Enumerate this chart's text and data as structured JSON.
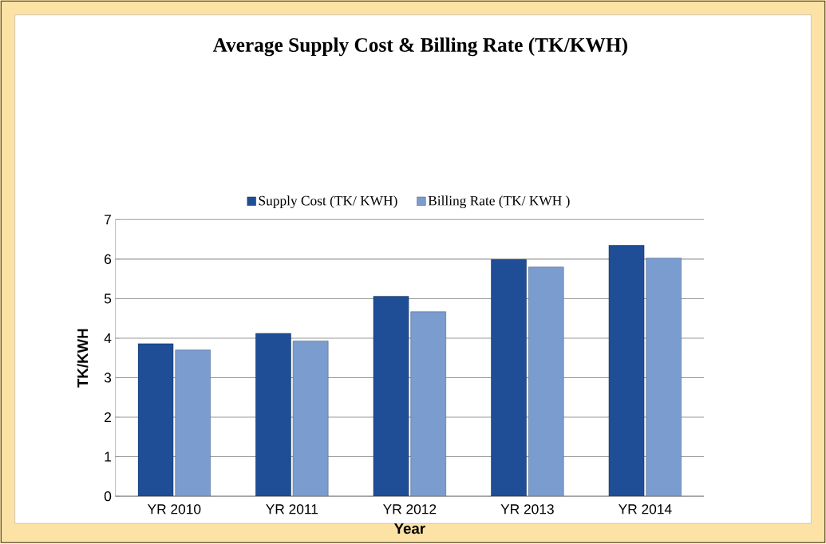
{
  "chart_data": {
    "type": "bar",
    "title": "Average Supply Cost & Billing Rate (TK/KWH)",
    "xlabel": "Year",
    "ylabel": "TK/KWH",
    "categories": [
      "YR 2010",
      "YR 2011",
      "YR 2012",
      "YR 2013",
      "YR 2014"
    ],
    "series": [
      {
        "name": "Supply Cost (TK/ KWH)",
        "color": "#1f4e96",
        "values": [
          3.86,
          4.12,
          5.06,
          5.99,
          6.35
        ]
      },
      {
        "name": "Billing Rate (TK/ KWH )",
        "color": "#7a9ccf",
        "values": [
          3.7,
          3.93,
          4.67,
          5.8,
          6.03
        ]
      }
    ],
    "ylim": [
      0,
      7
    ],
    "yticks": [
      0,
      1,
      2,
      3,
      4,
      5,
      6,
      7
    ],
    "grid": "y",
    "legend": "top"
  }
}
